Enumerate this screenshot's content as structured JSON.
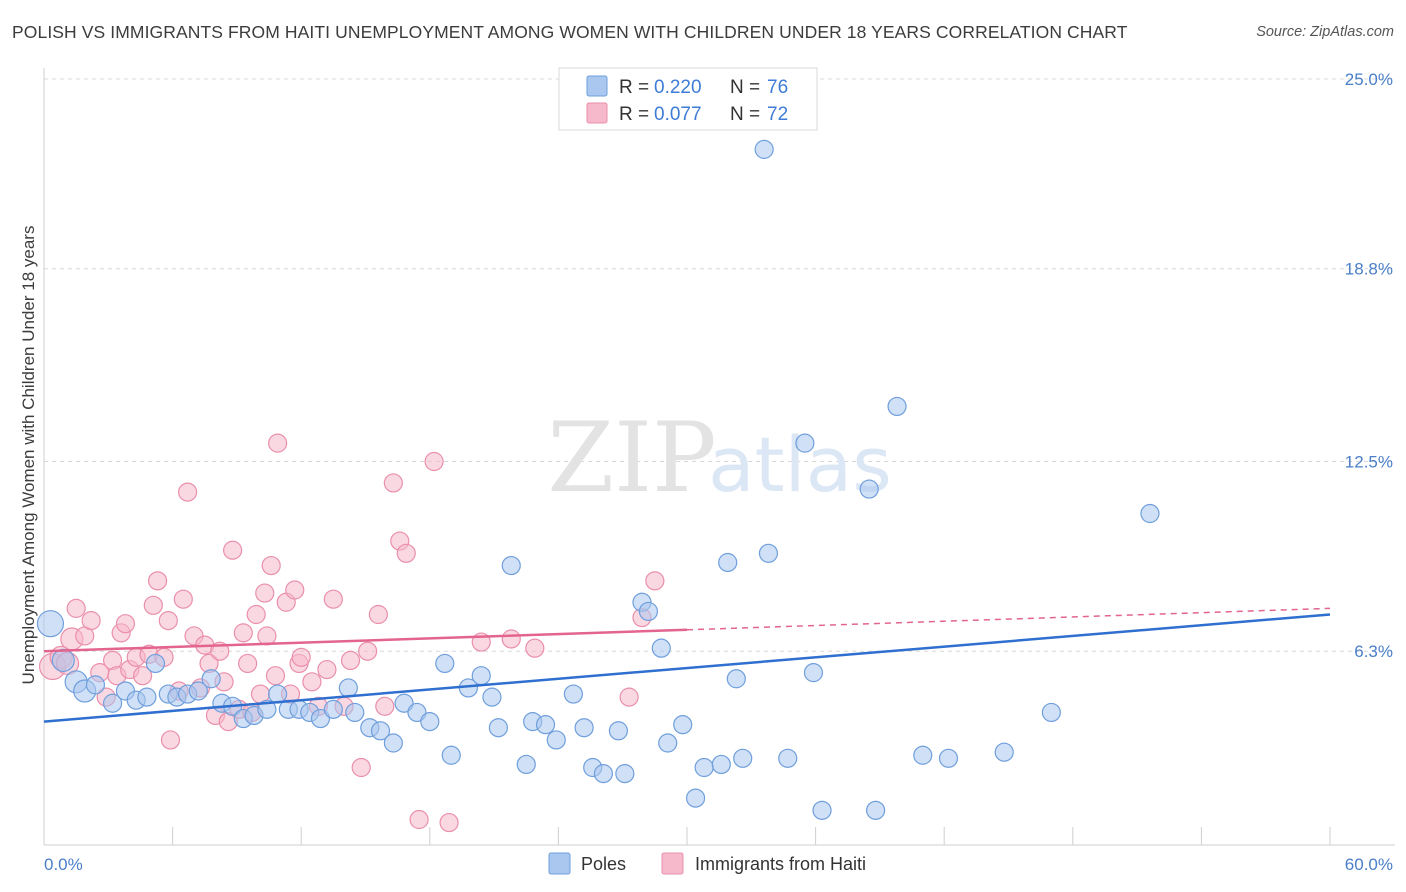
{
  "header": {
    "title": "POLISH VS IMMIGRANTS FROM HAITI UNEMPLOYMENT AMONG WOMEN WITH CHILDREN UNDER 18 YEARS CORRELATION CHART",
    "source": "Source: ZipAtlas.com"
  },
  "watermark": {
    "zip": "ZIP",
    "atlas": "atlas"
  },
  "legend": {
    "r_label": "R =",
    "n_label": "N =",
    "series": [
      {
        "r": "0.220",
        "n": "76"
      },
      {
        "r": "0.077",
        "n": "72"
      }
    ]
  },
  "bottom_legend": {
    "poles": "Poles",
    "haiti": "Immigrants from Haiti"
  },
  "colors": {
    "poles_fill": "#a9c7ef",
    "poles_stroke": "#6f9fdc",
    "poles_line": "#2f6fcf",
    "haiti_fill": "#f6b8cb",
    "haiti_stroke": "#ea8fab",
    "haiti_line": "#e2648f",
    "tick_label": "#4a7fc8",
    "grid": "#d8d8d8"
  },
  "chart_data": {
    "type": "scatter",
    "title": "POLISH VS IMMIGRANTS FROM HAITI UNEMPLOYMENT AMONG WOMEN WITH CHILDREN UNDER 18 YEARS CORRELATION CHART",
    "xlabel": "",
    "ylabel": "Unemployment Among Women with Children Under 18 years",
    "xlim": [
      0,
      60
    ],
    "ylim": [
      0,
      25
    ],
    "x_tick_labels": [
      "0.0%",
      "60.0%"
    ],
    "y_ticks": [
      6.3,
      12.5,
      18.8,
      25.0
    ],
    "y_tick_labels": [
      "6.3%",
      "12.5%",
      "18.8%",
      "25.0%"
    ],
    "grid": true,
    "legend_position": "top-center",
    "series": [
      {
        "name": "Poles",
        "r": 0.22,
        "n": 76,
        "trend": {
          "x": [
            0,
            60
          ],
          "y": [
            4.0,
            7.5
          ]
        },
        "points": [
          [
            0.3,
            7.2
          ],
          [
            0.9,
            6.0
          ],
          [
            1.5,
            5.3
          ],
          [
            1.9,
            5.0
          ],
          [
            2.4,
            5.2
          ],
          [
            3.2,
            4.6
          ],
          [
            3.8,
            5.0
          ],
          [
            4.3,
            4.7
          ],
          [
            4.8,
            4.8
          ],
          [
            5.2,
            5.9
          ],
          [
            5.8,
            4.9
          ],
          [
            6.2,
            4.8
          ],
          [
            6.7,
            4.9
          ],
          [
            7.2,
            5.0
          ],
          [
            7.8,
            5.4
          ],
          [
            8.3,
            4.6
          ],
          [
            8.8,
            4.5
          ],
          [
            9.3,
            4.1
          ],
          [
            9.8,
            4.2
          ],
          [
            10.4,
            4.4
          ],
          [
            10.9,
            4.9
          ],
          [
            11.4,
            4.4
          ],
          [
            11.9,
            4.4
          ],
          [
            12.4,
            4.3
          ],
          [
            12.9,
            4.1
          ],
          [
            13.5,
            4.4
          ],
          [
            14.2,
            5.1
          ],
          [
            14.5,
            4.3
          ],
          [
            15.2,
            3.8
          ],
          [
            15.7,
            3.7
          ],
          [
            16.3,
            3.3
          ],
          [
            16.8,
            4.6
          ],
          [
            17.4,
            4.3
          ],
          [
            18.0,
            4.0
          ],
          [
            18.7,
            5.9
          ],
          [
            19.0,
            2.9
          ],
          [
            19.8,
            5.1
          ],
          [
            20.4,
            5.5
          ],
          [
            20.9,
            4.8
          ],
          [
            21.2,
            3.8
          ],
          [
            21.8,
            9.1
          ],
          [
            22.5,
            2.6
          ],
          [
            22.8,
            4.0
          ],
          [
            23.4,
            3.9
          ],
          [
            23.9,
            3.4
          ],
          [
            24.7,
            4.9
          ],
          [
            25.2,
            3.8
          ],
          [
            25.6,
            2.5
          ],
          [
            26.1,
            2.3
          ],
          [
            26.8,
            3.7
          ],
          [
            27.1,
            2.3
          ],
          [
            27.9,
            7.9
          ],
          [
            28.2,
            7.6
          ],
          [
            28.8,
            6.4
          ],
          [
            29.1,
            3.3
          ],
          [
            29.8,
            3.9
          ],
          [
            30.4,
            1.5
          ],
          [
            30.8,
            2.5
          ],
          [
            31.6,
            2.6
          ],
          [
            31.9,
            9.2
          ],
          [
            32.3,
            5.4
          ],
          [
            32.6,
            2.8
          ],
          [
            33.8,
            9.5
          ],
          [
            34.7,
            2.8
          ],
          [
            35.9,
            5.6
          ],
          [
            36.3,
            1.1
          ],
          [
            33.6,
            22.7
          ],
          [
            35.5,
            13.1
          ],
          [
            38.5,
            11.6
          ],
          [
            38.8,
            1.1
          ],
          [
            39.8,
            14.3
          ],
          [
            41.0,
            2.9
          ],
          [
            42.2,
            2.8
          ],
          [
            44.8,
            3.0
          ],
          [
            47.0,
            4.3
          ],
          [
            51.6,
            10.8
          ]
        ]
      },
      {
        "name": "Immigrants from Haiti",
        "r": 0.077,
        "n": 72,
        "trend": {
          "x": [
            0,
            30
          ],
          "y": [
            6.3,
            7.0
          ]
        },
        "trend_dashed": {
          "x": [
            30,
            60
          ],
          "y": [
            7.0,
            7.7
          ]
        },
        "points": [
          [
            0.4,
            5.8
          ],
          [
            0.8,
            6.1
          ],
          [
            1.1,
            5.9
          ],
          [
            1.3,
            6.7
          ],
          [
            1.5,
            7.7
          ],
          [
            1.9,
            6.8
          ],
          [
            2.2,
            7.3
          ],
          [
            2.6,
            5.6
          ],
          [
            2.9,
            4.8
          ],
          [
            3.2,
            6.0
          ],
          [
            3.4,
            5.5
          ],
          [
            3.6,
            6.9
          ],
          [
            3.8,
            7.2
          ],
          [
            4.0,
            5.7
          ],
          [
            4.3,
            6.1
          ],
          [
            4.6,
            5.5
          ],
          [
            4.9,
            6.2
          ],
          [
            5.1,
            7.8
          ],
          [
            5.3,
            8.6
          ],
          [
            5.6,
            6.1
          ],
          [
            5.8,
            7.3
          ],
          [
            5.9,
            3.4
          ],
          [
            6.3,
            5.0
          ],
          [
            6.5,
            8.0
          ],
          [
            6.7,
            11.5
          ],
          [
            7.0,
            6.8
          ],
          [
            7.3,
            5.1
          ],
          [
            7.5,
            6.5
          ],
          [
            7.7,
            5.9
          ],
          [
            8.0,
            4.2
          ],
          [
            8.2,
            6.3
          ],
          [
            8.4,
            5.3
          ],
          [
            8.6,
            4.0
          ],
          [
            8.8,
            9.6
          ],
          [
            9.1,
            4.4
          ],
          [
            9.3,
            6.9
          ],
          [
            9.5,
            5.9
          ],
          [
            9.7,
            4.3
          ],
          [
            9.9,
            7.5
          ],
          [
            10.1,
            4.9
          ],
          [
            10.3,
            8.2
          ],
          [
            10.4,
            6.8
          ],
          [
            10.6,
            9.1
          ],
          [
            10.8,
            5.5
          ],
          [
            10.9,
            13.1
          ],
          [
            11.3,
            7.9
          ],
          [
            11.5,
            4.9
          ],
          [
            11.7,
            8.3
          ],
          [
            11.9,
            5.9
          ],
          [
            12.0,
            6.1
          ],
          [
            12.5,
            5.3
          ],
          [
            12.8,
            4.5
          ],
          [
            13.2,
            5.7
          ],
          [
            13.5,
            8.0
          ],
          [
            14.0,
            4.5
          ],
          [
            14.3,
            6.0
          ],
          [
            14.8,
            2.5
          ],
          [
            15.1,
            6.3
          ],
          [
            15.6,
            7.5
          ],
          [
            15.9,
            4.5
          ],
          [
            16.3,
            11.8
          ],
          [
            16.6,
            9.9
          ],
          [
            16.9,
            9.5
          ],
          [
            17.5,
            0.8
          ],
          [
            18.2,
            12.5
          ],
          [
            18.9,
            0.7
          ],
          [
            20.4,
            6.6
          ],
          [
            21.8,
            6.7
          ],
          [
            22.9,
            6.4
          ],
          [
            27.3,
            4.8
          ],
          [
            27.9,
            7.4
          ],
          [
            28.5,
            8.6
          ]
        ]
      }
    ]
  }
}
